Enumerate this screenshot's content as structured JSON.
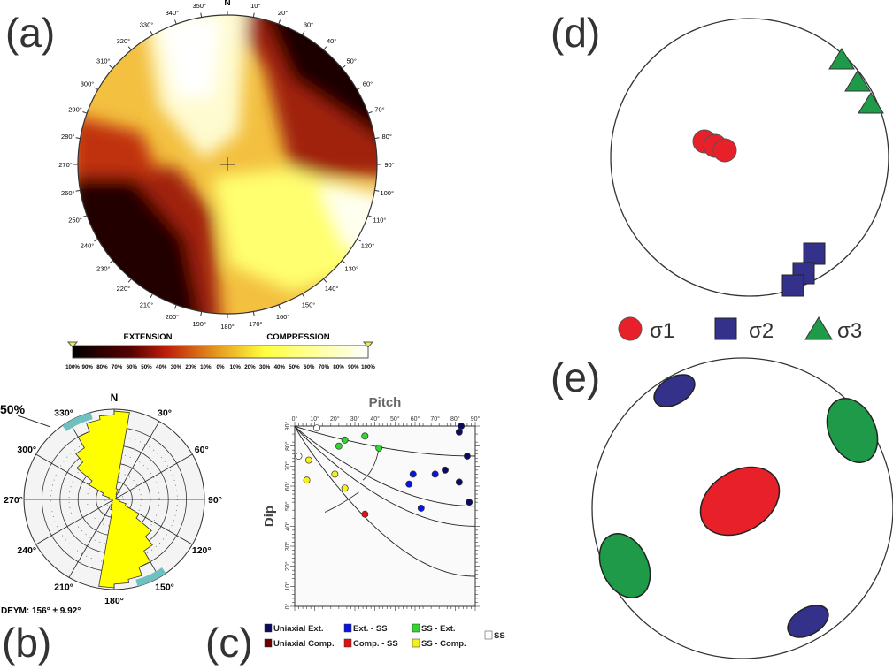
{
  "panels": {
    "a": "(a)",
    "b": "(b)",
    "c": "(c)",
    "d": "(d)",
    "e": "(e)"
  },
  "stereonet_a": {
    "azimuth_labels": [
      "N",
      "10°",
      "20°",
      "30°",
      "40°",
      "50°",
      "60°",
      "70°",
      "80°",
      "90°",
      "100°",
      "110°",
      "120°",
      "130°",
      "140°",
      "150°",
      "160°",
      "170°",
      "180°",
      "190°",
      "200°",
      "210°",
      "220°",
      "230°",
      "240°",
      "250°",
      "260°",
      "270°",
      "280°",
      "290°",
      "300°",
      "310°",
      "320°",
      "330°",
      "340°",
      "350°"
    ],
    "colorbar": {
      "left_title": "EXTENSION",
      "right_title": "COMPRESSION",
      "ticks": [
        "100%",
        "90%",
        "80%",
        "70%",
        "60%",
        "50%",
        "40%",
        "30%",
        "20%",
        "10%",
        "0%",
        "10%",
        "20%",
        "30%",
        "40%",
        "50%",
        "60%",
        "70%",
        "80%",
        "90%",
        "100%"
      ],
      "colors": [
        "#000000",
        "#6b0000",
        "#c0200a",
        "#e8901a",
        "#f5e030",
        "#ffff60",
        "#ffffff"
      ]
    }
  },
  "rose_b": {
    "scale_label": "50%",
    "north": "N",
    "angle_labels": [
      "30°",
      "60°",
      "90°",
      "120°",
      "150°",
      "180°",
      "210°",
      "240°",
      "270°",
      "300°",
      "330°"
    ],
    "stat": "DEYM: 156° ± 9.92°",
    "fill_color": "#ffff00",
    "ci_color": "#6fc0c0",
    "bins_deg": [
      0,
      10,
      20,
      30,
      40,
      50,
      60,
      70,
      80,
      90,
      100,
      110,
      120,
      130,
      140,
      150,
      160,
      170
    ],
    "bins_pct": [
      49,
      6,
      3,
      2,
      2,
      1,
      1,
      1,
      1,
      2,
      3,
      7,
      16,
      27,
      33,
      40,
      45,
      47
    ]
  },
  "chart_data": {
    "type": "scatter",
    "title": "Pitch",
    "xlabel": "Pitch",
    "ylabel": "Dip",
    "xlim": [
      0,
      90
    ],
    "ylim": [
      0,
      90
    ],
    "x_ticks": [
      "0°",
      "10°",
      "20°",
      "30°",
      "40°",
      "50°",
      "60°",
      "70°",
      "80°",
      "90°"
    ],
    "y_ticks": [
      "0°",
      "10°",
      "20°",
      "30°",
      "40°",
      "50°",
      "60°",
      "70°",
      "80°",
      "90°"
    ],
    "legend": [
      {
        "label": "Uniaxial Ext.",
        "color": "#0a0a60"
      },
      {
        "label": "Ext. - SS",
        "color": "#0a14e0"
      },
      {
        "label": "SS - Ext.",
        "color": "#2ed82e"
      },
      {
        "label": "SS",
        "color": "#ffffff"
      },
      {
        "label": "Uniaxial Comp.",
        "color": "#6b0000"
      },
      {
        "label": "Comp. - SS",
        "color": "#e01010"
      },
      {
        "label": "SS - Comp.",
        "color": "#f5f020"
      }
    ],
    "points": [
      {
        "pitch": 22,
        "dip": 80,
        "class": "SS - Ext."
      },
      {
        "pitch": 25,
        "dip": 83,
        "class": "SS - Ext."
      },
      {
        "pitch": 35,
        "dip": 85,
        "class": "SS - Ext."
      },
      {
        "pitch": 42,
        "dip": 79,
        "class": "SS - Ext."
      },
      {
        "pitch": 7,
        "dip": 73,
        "class": "SS - Comp."
      },
      {
        "pitch": 6,
        "dip": 63,
        "class": "SS - Comp."
      },
      {
        "pitch": 20,
        "dip": 66,
        "class": "SS - Comp."
      },
      {
        "pitch": 25,
        "dip": 59,
        "class": "SS - Comp."
      },
      {
        "pitch": 35,
        "dip": 46,
        "class": "Comp. - SS"
      },
      {
        "pitch": 57,
        "dip": 61,
        "class": "Ext. - SS"
      },
      {
        "pitch": 59,
        "dip": 66,
        "class": "Ext. - SS"
      },
      {
        "pitch": 70,
        "dip": 66,
        "class": "Ext. - SS"
      },
      {
        "pitch": 63,
        "dip": 49,
        "class": "Ext. - SS"
      },
      {
        "pitch": 82,
        "dip": 87,
        "class": "Uniaxial Ext."
      },
      {
        "pitch": 83,
        "dip": 90,
        "class": "Uniaxial Ext."
      },
      {
        "pitch": 86,
        "dip": 75,
        "class": "Uniaxial Ext."
      },
      {
        "pitch": 75,
        "dip": 68,
        "class": "Uniaxial Ext."
      },
      {
        "pitch": 82,
        "dip": 62,
        "class": "Uniaxial Ext."
      },
      {
        "pitch": 87,
        "dip": 52,
        "class": "Uniaxial Ext."
      },
      {
        "pitch": 11,
        "dip": 89,
        "class": "SS"
      },
      {
        "pitch": 2,
        "dip": 75,
        "class": "SS"
      }
    ],
    "curve_asymptotes": [
      75,
      50,
      40,
      15
    ]
  },
  "stereonet_d": {
    "legend": [
      {
        "label": "σ1",
        "color": "#e8202a",
        "shape": "circle"
      },
      {
        "label": "σ2",
        "color": "#33318a",
        "shape": "square"
      },
      {
        "label": "σ3",
        "color": "#1e9a48",
        "shape": "triangle"
      }
    ]
  },
  "stereonet_e": {
    "colors": {
      "sigma1": "#e8202a",
      "sigma2": "#33318a",
      "sigma3": "#1e9a48"
    }
  }
}
